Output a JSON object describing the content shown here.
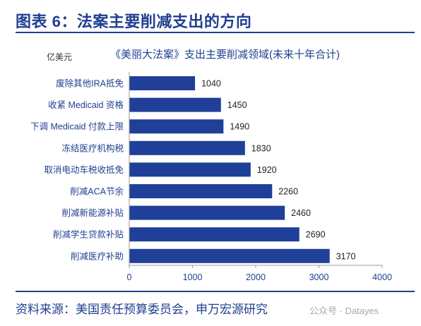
{
  "figure_title": "图表 6：法案主要削减支出的方向",
  "unit_label": "亿美元",
  "source": "资料来源：美国责任预算委员会，申万宏源研究",
  "watermark": "公众号 · Datayes",
  "colors": {
    "bar": "#1f3f98",
    "title": "#1f3f8f",
    "rule": "#1f3f8f"
  },
  "chart_data": {
    "type": "bar",
    "orientation": "horizontal",
    "title": "《美丽大法案》支出主要削减领域(未来十年合计)",
    "categories": [
      "废除其他IRA抵免",
      "收紧 Medicaid 资格",
      "下调 Medicaid 付款上限",
      "冻结医疗机构税",
      "取消电动车税收抵免",
      "削减ACA节余",
      "削减新能源补贴",
      "削减学生贷款补贴",
      "削减医疗补助"
    ],
    "values": [
      1040,
      1450,
      1490,
      1830,
      1920,
      2260,
      2460,
      2690,
      3170
    ],
    "xlim": [
      0,
      4000
    ],
    "xticks": [
      0,
      1000,
      2000,
      3000,
      4000
    ],
    "grid": false,
    "legend": "none"
  }
}
